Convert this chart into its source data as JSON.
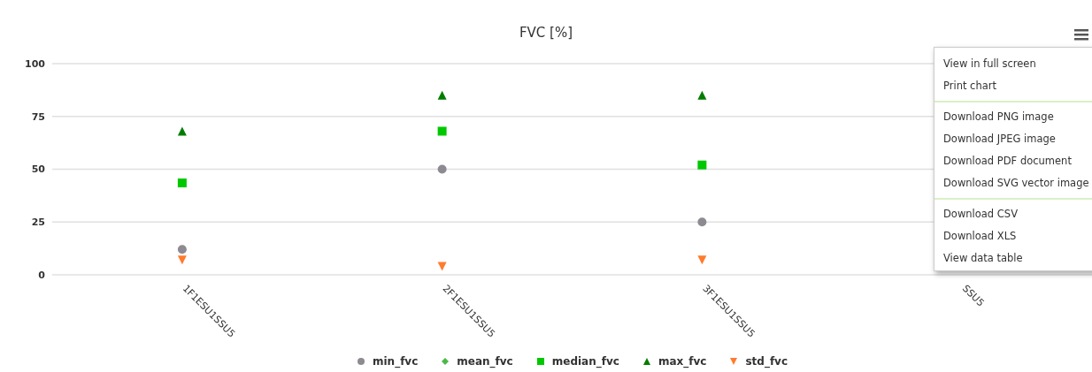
{
  "chart_data": {
    "type": "scatter",
    "title": "FVC [%]",
    "categories": [
      "1F1ESU1SSU5",
      "2F1ESU1SSU5",
      "3F1ESU1SSU5",
      "SSU5"
    ],
    "series": [
      {
        "name": "min_fvc",
        "color": "#8e8a91",
        "marker": "circle",
        "values": [
          12,
          50,
          25,
          null
        ]
      },
      {
        "name": "mean_fvc",
        "color": "#4cb849",
        "marker": "diamond",
        "values": [
          null,
          null,
          null,
          null
        ]
      },
      {
        "name": "median_fvc",
        "color": "#00c800",
        "marker": "square",
        "values": [
          43.5,
          68,
          52,
          null
        ]
      },
      {
        "name": "max_fvc",
        "color": "#007d00",
        "marker": "triangle",
        "values": [
          68,
          85,
          85,
          null
        ]
      },
      {
        "name": "std_fvc",
        "color": "#ff7b2e",
        "marker": "triangle-down",
        "values": [
          7,
          4,
          7,
          null
        ]
      }
    ],
    "ylim": [
      0,
      100
    ],
    "yticks": [
      0,
      25,
      50,
      75,
      100
    ],
    "grid": "y",
    "legend": "bottom",
    "annotations": [
      "View in full screen",
      "Print chart",
      "Download PNG image",
      "Download JPEG image",
      "Download PDF document",
      "Download SVG vector image",
      "Download CSV",
      "Download XLS",
      "View data table"
    ]
  }
}
